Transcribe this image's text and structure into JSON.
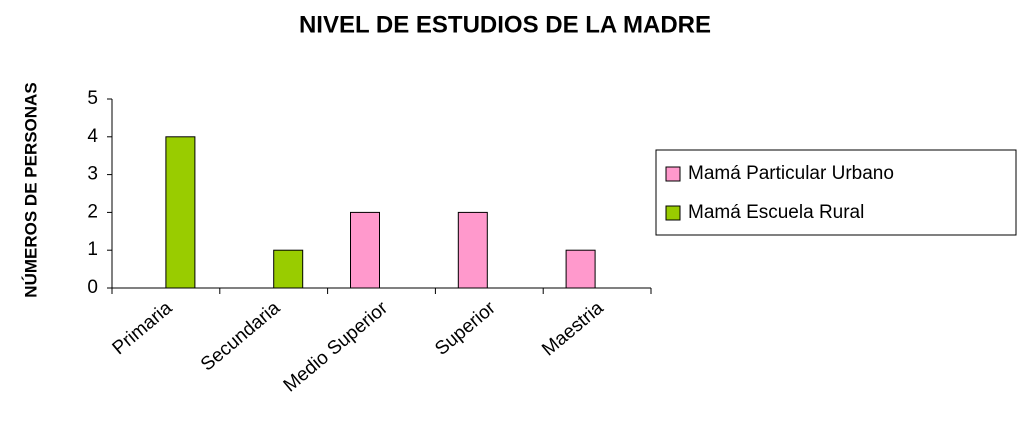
{
  "chart_data": {
    "type": "bar",
    "title": "NIVEL DE ESTUDIOS DE LA MADRE",
    "y_label": "NÚMEROS DE PERSONAS",
    "categories": [
      "Primaria",
      "Secundaria",
      "Medio Superior",
      "Superior",
      "Maestria"
    ],
    "series": [
      {
        "name": "Mamá Particular Urbano",
        "color": "#ff99cc",
        "values": [
          0,
          0,
          2,
          2,
          1
        ]
      },
      {
        "name": "Mamá Escuela Rural",
        "color": "#99cc00",
        "values": [
          4,
          1,
          0,
          0,
          0
        ]
      }
    ],
    "ylim": [
      0,
      5
    ],
    "yticks": [
      0,
      1,
      2,
      3,
      4,
      5
    ],
    "grid": false,
    "legend": "right"
  }
}
